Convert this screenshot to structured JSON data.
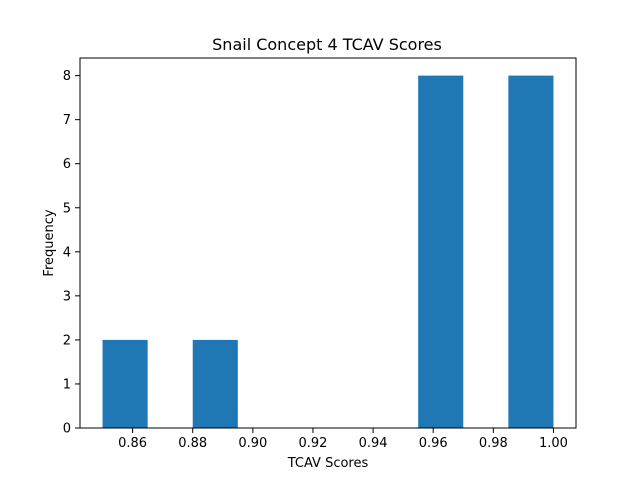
{
  "chart_data": {
    "type": "bar",
    "subtype": "histogram",
    "title": "Snail Concept 4 TCAV Scores",
    "xlabel": "TCAV Scores",
    "ylabel": "Frequency",
    "bins": [
      {
        "x0": 0.85,
        "x1": 0.865,
        "count": 2
      },
      {
        "x0": 0.865,
        "x1": 0.88,
        "count": 0
      },
      {
        "x0": 0.88,
        "x1": 0.895,
        "count": 2
      },
      {
        "x0": 0.895,
        "x1": 0.91,
        "count": 0
      },
      {
        "x0": 0.91,
        "x1": 0.925,
        "count": 0
      },
      {
        "x0": 0.925,
        "x1": 0.94,
        "count": 0
      },
      {
        "x0": 0.94,
        "x1": 0.955,
        "count": 0
      },
      {
        "x0": 0.955,
        "x1": 0.97,
        "count": 8
      },
      {
        "x0": 0.97,
        "x1": 0.985,
        "count": 0
      },
      {
        "x0": 0.985,
        "x1": 1.0,
        "count": 8
      }
    ],
    "xlim": [
      0.8425,
      1.0075
    ],
    "ylim": [
      0,
      8.4
    ],
    "x_ticks": [
      0.86,
      0.88,
      0.9,
      0.92,
      0.94,
      0.96,
      0.98,
      1.0
    ],
    "x_tick_labels": [
      "0.86",
      "0.88",
      "0.90",
      "0.92",
      "0.94",
      "0.96",
      "0.98",
      "1.00"
    ],
    "y_ticks": [
      0,
      1,
      2,
      3,
      4,
      5,
      6,
      7,
      8
    ],
    "y_tick_labels": [
      "0",
      "1",
      "2",
      "3",
      "4",
      "5",
      "6",
      "7",
      "8"
    ],
    "grid": false,
    "legend": "none",
    "bar_color": "#1f77b4"
  }
}
